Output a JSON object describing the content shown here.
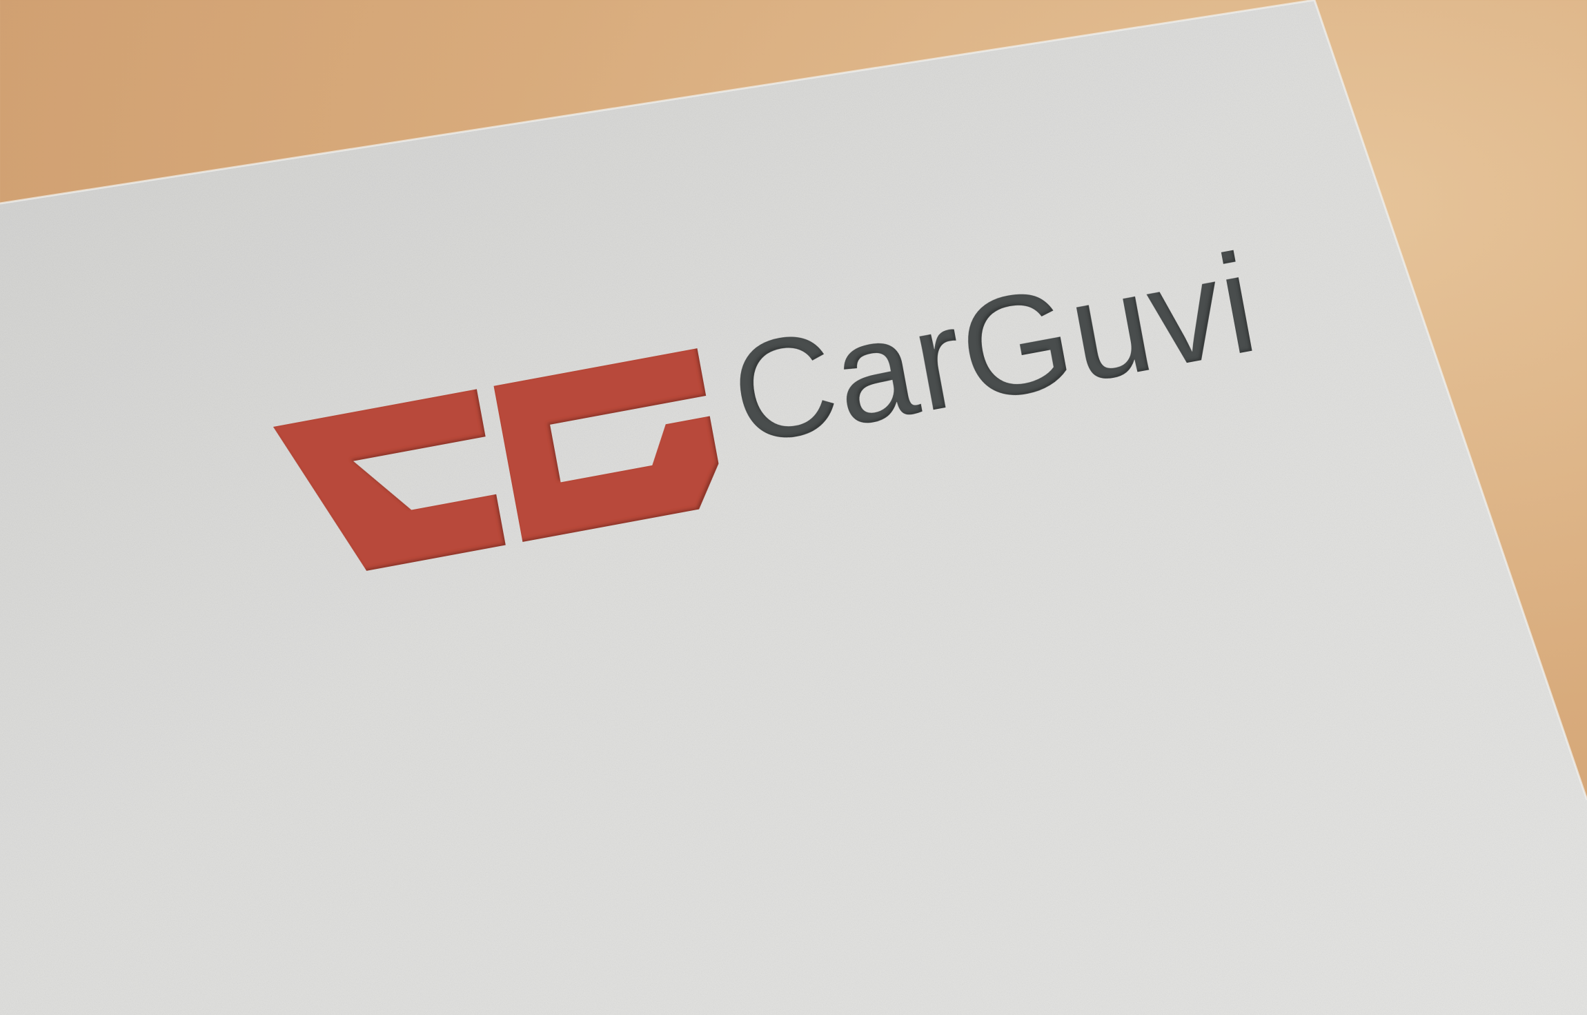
{
  "brand": {
    "name": "CarGuvi",
    "monogram": "CG"
  },
  "colors": {
    "background": "#d8ab7c",
    "paper": "#d9d9d7",
    "monogram": "#b84a3a",
    "wordmark": "#4a4d4e"
  }
}
